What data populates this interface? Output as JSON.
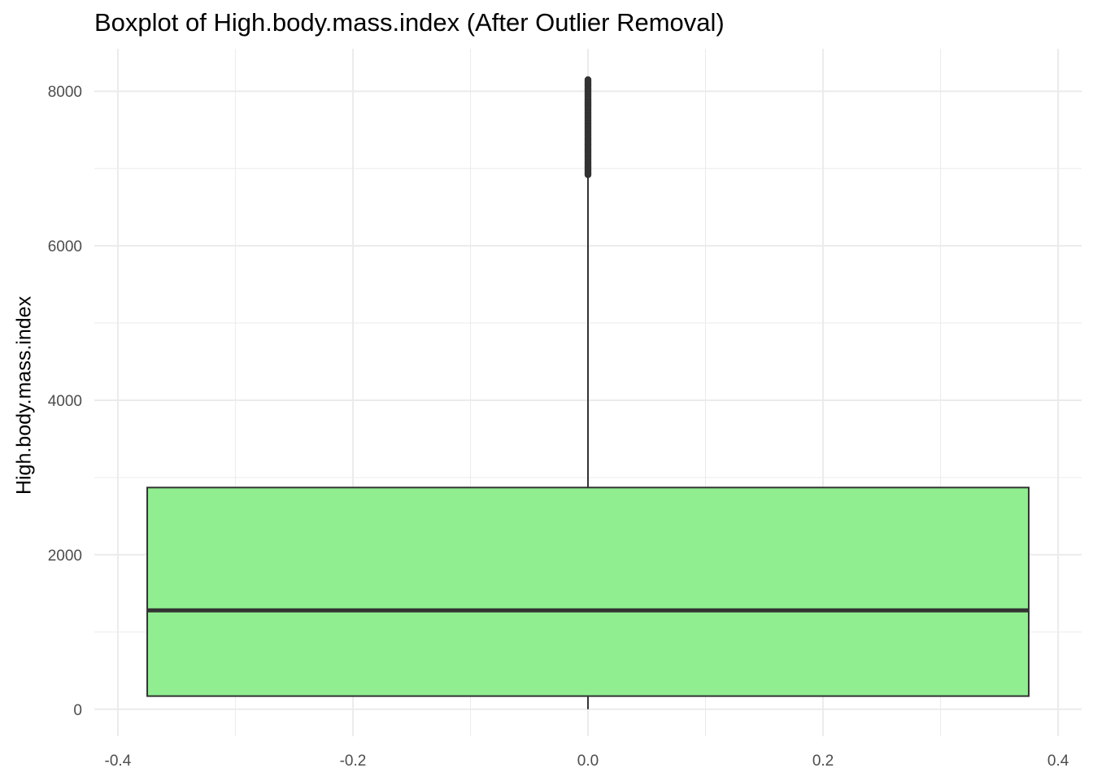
{
  "chart_data": {
    "type": "box",
    "title": "Boxplot of High.body.mass.index (After Outlier Removal)",
    "xlabel": "",
    "ylabel": "High.body.mass.index",
    "xlim": [
      -0.42,
      0.42
    ],
    "ylim": [
      -350,
      8550
    ],
    "x_ticks": [
      -0.4,
      -0.2,
      0.0,
      0.2,
      0.4
    ],
    "x_tick_labels": [
      "-0.4",
      "-0.2",
      "0.0",
      "0.2",
      "0.4"
    ],
    "y_ticks": [
      0,
      2000,
      4000,
      6000,
      8000
    ],
    "y_tick_labels": [
      "0",
      "2000",
      "4000",
      "6000",
      "8000"
    ],
    "grid": true,
    "box": {
      "x_center": 0.0,
      "x_min": -0.375,
      "x_max": 0.375,
      "whisker_low": 0,
      "q1": 170,
      "median": 1280,
      "q3": 2870,
      "whisker_high": 6920,
      "outlier_min": 6920,
      "outlier_max": 8150
    },
    "fill_color": "#90EE90",
    "line_color": "#333333",
    "grid_color": "#ebebeb"
  }
}
